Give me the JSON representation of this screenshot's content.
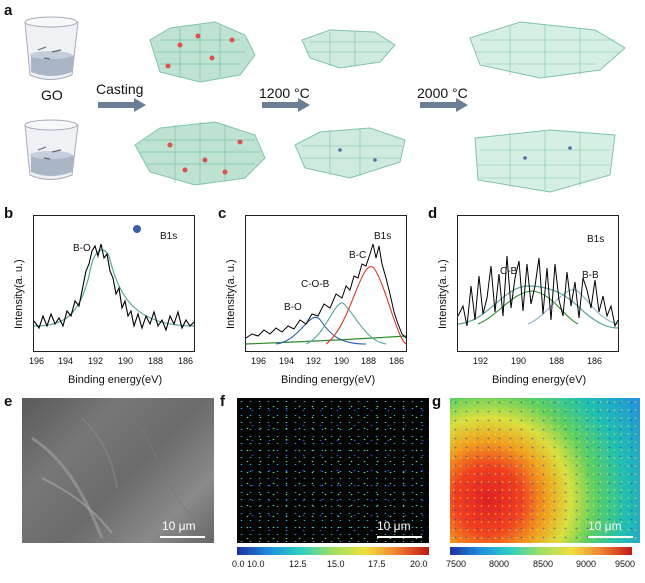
{
  "panel_a": {
    "label": "a",
    "go_label": "GO",
    "casting_label": "Casting",
    "temp1_label": "1200 °C",
    "temp2_label": "2000 °C"
  },
  "panel_b": {
    "label": "b",
    "title": "B1s",
    "peak": "B-O",
    "ylabel": "Intensity(a. u.)",
    "xlabel": "Binding energy(eV)",
    "ticks": [
      "196",
      "194",
      "192",
      "190",
      "188",
      "186"
    ]
  },
  "panel_c": {
    "label": "c",
    "title": "B1s",
    "peaks": [
      "B-O",
      "C-O-B",
      "B-C"
    ],
    "ylabel": "Intensity(a. u.)",
    "xlabel": "Binding energy(eV)",
    "ticks": [
      "196",
      "194",
      "192",
      "190",
      "188",
      "186"
    ]
  },
  "panel_d": {
    "label": "d",
    "title": "B1s",
    "peaks": [
      "C-B",
      "B-B"
    ],
    "ylabel": "Intensity(a. u.)",
    "xlabel": "Binding energy(eV)",
    "ticks": [
      "192",
      "190",
      "188",
      "186"
    ]
  },
  "panel_e": {
    "label": "e",
    "scale": "10 μm"
  },
  "panel_f": {
    "label": "f",
    "scale": "10 μm",
    "colorbar": [
      "0.0 10.0",
      "12.5",
      "15.0",
      "17.5",
      "20.0"
    ]
  },
  "panel_g": {
    "label": "g",
    "scale": "10 μm",
    "colorbar": [
      "7500",
      "8000",
      "8500",
      "9000",
      "9500"
    ]
  },
  "colors": {
    "graphene": "#7fc4a8",
    "oxygen": "#d9534f",
    "fit_blue": "#2a5fa8",
    "fit_red": "#d43a2a",
    "fit_green": "#2e8b2e",
    "fit_teal": "#5aa5a0"
  }
}
